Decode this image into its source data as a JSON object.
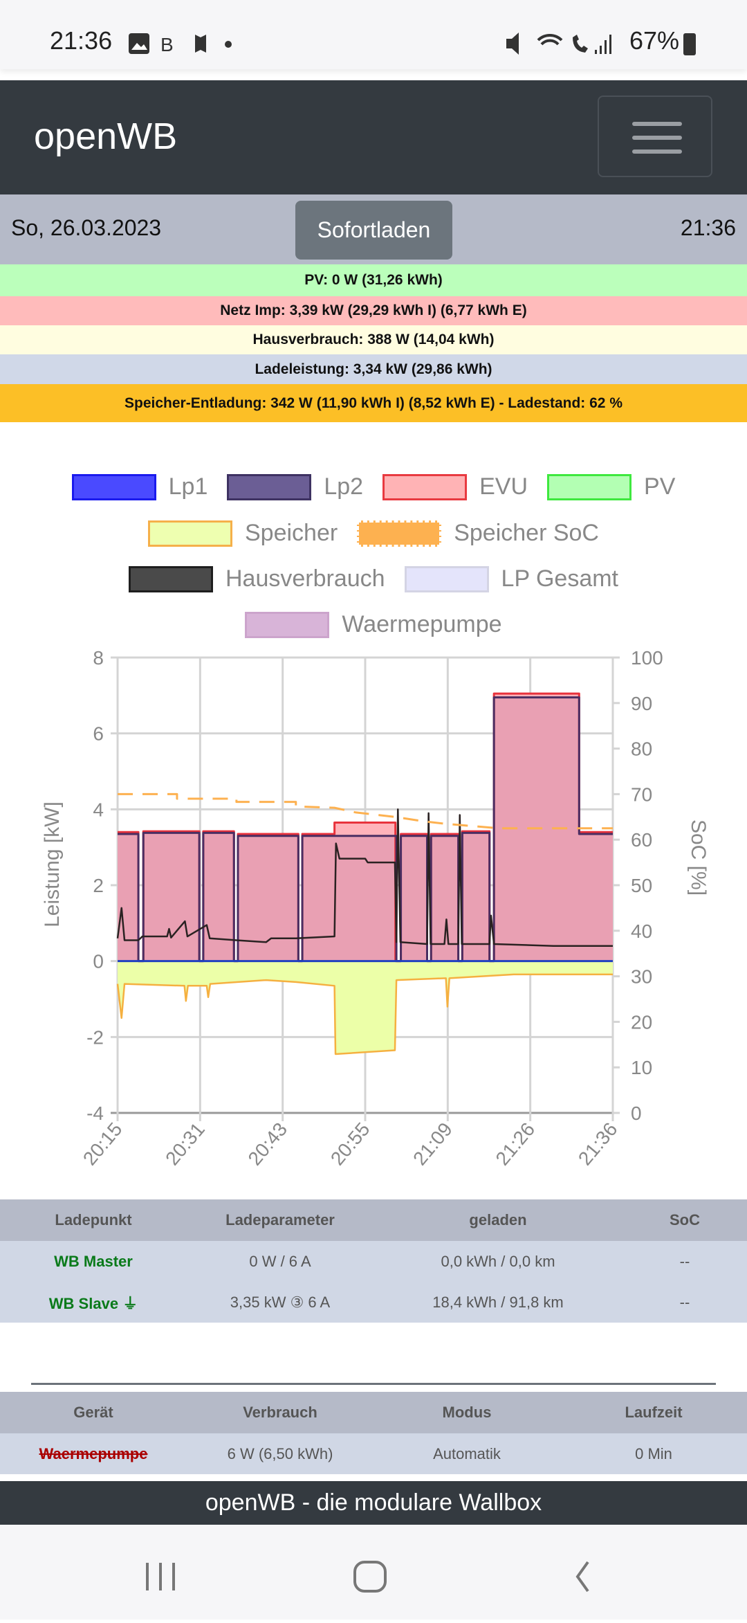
{
  "statusbar": {
    "time": "21:36",
    "battery": "67%",
    "icons": [
      "image-icon",
      "bluelink-icon",
      "maps-off-icon",
      "dot-icon",
      "mute-icon",
      "wifi-icon",
      "wifi-call-icon",
      "signal-icon",
      "battery-icon"
    ]
  },
  "navbar": {
    "brand": "openWB",
    "menu_icon": "hamburger-icon"
  },
  "datebar": {
    "date": "So, 26.03.2023",
    "button": "Sofortladen",
    "time": "21:36"
  },
  "info": {
    "pv": "PV: 0 W (31,26 kWh)",
    "netz": "Netz Imp: 3,39 kW (29,29 kWh I) (6,77 kWh E)",
    "haus": "Hausverbrauch: 388 W (14,04 kWh)",
    "lade": "Ladeleistung: 3,34 kW (29,86 kWh)",
    "speicher": "Speicher-Entladung: 342 W (11,90 kWh I) (8,52 kWh E) - Ladestand: 62 %"
  },
  "colors": {
    "pv": "#bbffbb",
    "netz": "#ffbbbb",
    "haus": "#fffde0",
    "lade": "#d0d8e8",
    "speicher": "#fcbf26"
  },
  "chart_data": {
    "type": "line",
    "legend": [
      {
        "label": "Lp1",
        "fill": "#4a4aff",
        "border": "#1a1aee"
      },
      {
        "label": "Lp2",
        "fill": "#6b5e95",
        "border": "#3e3262"
      },
      {
        "label": "EVU",
        "fill": "#ffb3b5",
        "border": "#e83a40"
      },
      {
        "label": "PV",
        "fill": "#b3ffb3",
        "border": "#3ee83e"
      },
      {
        "label": "Speicher",
        "fill": "#eeffb0",
        "border": "#f5b04a"
      },
      {
        "label": "Speicher SoC",
        "fill": "#fdb150",
        "border": "#fdb150",
        "dashed": true
      },
      {
        "label": "Hausverbrauch",
        "fill": "#4a4a4a",
        "border": "#1e1e1e"
      },
      {
        "label": "LP Gesamt",
        "fill": "#e4e4fb",
        "border": "#d4d4e4"
      },
      {
        "label": "Waermepumpe",
        "fill": "#d8b4d8",
        "border": "#cca4cc"
      }
    ],
    "ylabel": "Leistung [kW]",
    "y2label": "SoC [%]",
    "ylim": [
      -4,
      8
    ],
    "y2lim": [
      0,
      100
    ],
    "yticks": [
      "8",
      "6",
      "4",
      "2",
      "0",
      "-2",
      "-4"
    ],
    "y2ticks": [
      "100",
      "90",
      "80",
      "70",
      "60",
      "50",
      "40",
      "30",
      "20",
      "10",
      "0"
    ],
    "xticks": [
      "20:15",
      "20:31",
      "20:43",
      "20:55",
      "21:09",
      "21:26",
      "21:36"
    ],
    "x_unit": "percent of time range",
    "series": {
      "lp2": [
        [
          0,
          4.2,
          3.35
        ],
        [
          4.2,
          5.2,
          0
        ],
        [
          5.2,
          16.5,
          3.38
        ],
        [
          16.5,
          17.3,
          0
        ],
        [
          17.3,
          23.5,
          3.38
        ],
        [
          23.5,
          24.3,
          0
        ],
        [
          24.3,
          36.5,
          3.3
        ],
        [
          36.5,
          37.3,
          0
        ],
        [
          37.3,
          56.3,
          3.3
        ],
        [
          56.3,
          57.2,
          0
        ],
        [
          57.2,
          62.5,
          3.3
        ],
        [
          62.5,
          63.3,
          0
        ],
        [
          63.3,
          68.8,
          3.3
        ],
        [
          68.8,
          69.6,
          0
        ],
        [
          69.6,
          75.1,
          3.38
        ],
        [
          75.1,
          76,
          0
        ],
        [
          76,
          93.2,
          6.95
        ],
        [
          93.2,
          100,
          3.35
        ]
      ],
      "evu": [
        [
          0,
          4.2,
          3.4
        ],
        [
          4.2,
          5.2,
          0
        ],
        [
          5.2,
          16.5,
          3.42
        ],
        [
          16.5,
          17.3,
          0
        ],
        [
          17.3,
          23.5,
          3.42
        ],
        [
          23.5,
          24.3,
          0
        ],
        [
          24.3,
          36.5,
          3.35
        ],
        [
          36.5,
          37.3,
          0
        ],
        [
          37.3,
          43.8,
          3.35
        ],
        [
          43.8,
          56.1,
          3.65
        ],
        [
          56.1,
          57.2,
          0
        ],
        [
          57.2,
          62.5,
          3.35
        ],
        [
          62.5,
          63.3,
          0
        ],
        [
          63.3,
          68.8,
          3.35
        ],
        [
          68.8,
          69.6,
          0
        ],
        [
          69.6,
          75.1,
          3.42
        ],
        [
          75.1,
          76,
          0
        ],
        [
          76,
          93.2,
          7.05
        ],
        [
          93.2,
          100,
          3.4
        ]
      ],
      "haus": [
        [
          0,
          0.6
        ],
        [
          0.8,
          1.4
        ],
        [
          1.4,
          0.55
        ],
        [
          4.2,
          0.55
        ],
        [
          5,
          0.65
        ],
        [
          10,
          0.65
        ],
        [
          10.4,
          0.85
        ],
        [
          10.8,
          0.62
        ],
        [
          13.6,
          1.05
        ],
        [
          14.1,
          0.65
        ],
        [
          18,
          0.95
        ],
        [
          18.6,
          0.6
        ],
        [
          24,
          0.55
        ],
        [
          30,
          0.5
        ],
        [
          31,
          0.6
        ],
        [
          36,
          0.6
        ],
        [
          43.8,
          0.65
        ],
        [
          44.1,
          3.1
        ],
        [
          44.8,
          2.7
        ],
        [
          50,
          2.7
        ],
        [
          50.5,
          2.6
        ],
        [
          56,
          2.6
        ],
        [
          56.3,
          0.5
        ],
        [
          56.6,
          4.0
        ],
        [
          57.1,
          0.5
        ],
        [
          62.5,
          0.45
        ],
        [
          62.8,
          3.9
        ],
        [
          63.2,
          0.45
        ],
        [
          66,
          0.45
        ],
        [
          66.4,
          1.1
        ],
        [
          66.8,
          0.45
        ],
        [
          68.8,
          0.45
        ],
        [
          69.1,
          3.85
        ],
        [
          69.5,
          0.45
        ],
        [
          75.1,
          0.45
        ],
        [
          75.4,
          1.2
        ],
        [
          76,
          0.45
        ],
        [
          88,
          0.4
        ],
        [
          100,
          0.4
        ]
      ],
      "speicher": [
        [
          0,
          -0.6
        ],
        [
          0.8,
          -1.5
        ],
        [
          1.4,
          -0.6
        ],
        [
          13.5,
          -0.65
        ],
        [
          13.8,
          -1.05
        ],
        [
          14.2,
          -0.65
        ],
        [
          18,
          -0.65
        ],
        [
          18.3,
          -0.95
        ],
        [
          18.7,
          -0.6
        ],
        [
          30,
          -0.5
        ],
        [
          36,
          -0.55
        ],
        [
          43.8,
          -0.65
        ],
        [
          44,
          -2.45
        ],
        [
          56,
          -2.35
        ],
        [
          56.3,
          -0.5
        ],
        [
          66.3,
          -0.45
        ],
        [
          66.6,
          -1.2
        ],
        [
          67,
          -0.45
        ],
        [
          80,
          -0.35
        ],
        [
          100,
          -0.35
        ]
      ],
      "soc": [
        [
          0,
          70
        ],
        [
          12,
          70
        ],
        [
          12,
          69
        ],
        [
          24,
          69
        ],
        [
          24,
          68.3
        ],
        [
          36,
          68.3
        ],
        [
          36,
          67.3
        ],
        [
          43.8,
          67
        ],
        [
          48,
          66
        ],
        [
          56,
          65
        ],
        [
          62,
          64
        ],
        [
          66,
          63.5
        ],
        [
          77,
          62.5
        ],
        [
          100,
          62.5
        ]
      ],
      "lp1": [
        [
          0,
          0
        ],
        [
          100,
          0
        ]
      ]
    }
  },
  "table1": {
    "headers": [
      "Ladepunkt",
      "Ladeparameter",
      "geladen",
      "SoC"
    ],
    "rows": [
      [
        "WB Master",
        "0 W / 6 A",
        "0,0 kWh / 0,0 km",
        "--"
      ],
      [
        "WB Slave",
        "3,35 kW ③ 6 A",
        "18,4 kWh / 91,8 km",
        "--"
      ]
    ],
    "plug_icon": "plug-icon"
  },
  "table2": {
    "headers": [
      "Gerät",
      "Verbrauch",
      "Modus",
      "Laufzeit"
    ],
    "rows": [
      [
        "Waermepumpe",
        "6 W (6,50 kWh)",
        "Automatik",
        "0 Min"
      ]
    ]
  },
  "footer": "openWB - die modulare Wallbox"
}
